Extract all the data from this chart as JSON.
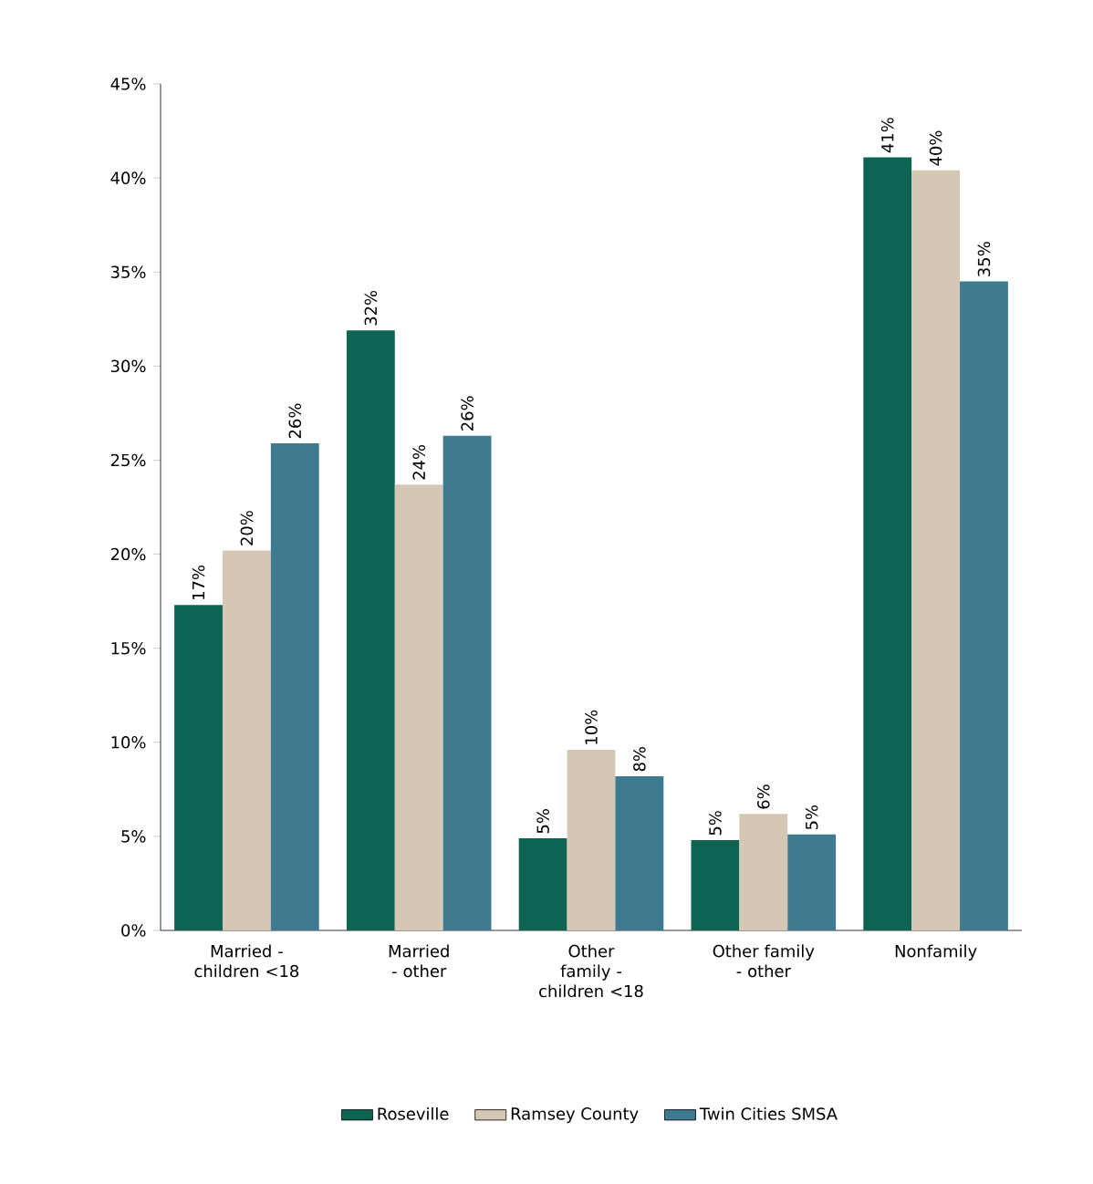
{
  "chart_data": {
    "type": "bar",
    "categories": [
      "Married - children <18",
      "Married - other",
      "Other family - children <18",
      "Other family - other",
      "Nonfamily"
    ],
    "series": [
      {
        "name": "Roseville",
        "color": "#0e6452",
        "values": [
          17.3,
          31.9,
          4.9,
          4.8,
          41.1
        ],
        "value_labels": [
          "17%",
          "32%",
          "5%",
          "5%",
          "41%"
        ]
      },
      {
        "name": "Ramsey County",
        "color": "#d4c8b4",
        "values": [
          20.2,
          23.7,
          9.6,
          6.2,
          40.4
        ],
        "value_labels": [
          "20%",
          "24%",
          "10%",
          "6%",
          "40%"
        ]
      },
      {
        "name": "Twin Cities SMSA",
        "color": "#3e7b90",
        "values": [
          25.9,
          26.3,
          8.2,
          5.1,
          34.5
        ],
        "value_labels": [
          "26%",
          "26%",
          "8%",
          "5%",
          "35%"
        ]
      }
    ],
    "ylim": [
      0,
      45
    ],
    "yticks": [
      {
        "value": 0,
        "label": "0%"
      },
      {
        "value": 5,
        "label": "5%"
      },
      {
        "value": 10,
        "label": "10%"
      },
      {
        "value": 15,
        "label": "15%"
      },
      {
        "value": 20,
        "label": "20%"
      },
      {
        "value": 25,
        "label": "25%"
      },
      {
        "value": 30,
        "label": "30%"
      },
      {
        "value": 35,
        "label": "35%"
      },
      {
        "value": 40,
        "label": "40%"
      },
      {
        "value": 45,
        "label": "45%"
      }
    ],
    "legend": "bottom"
  }
}
